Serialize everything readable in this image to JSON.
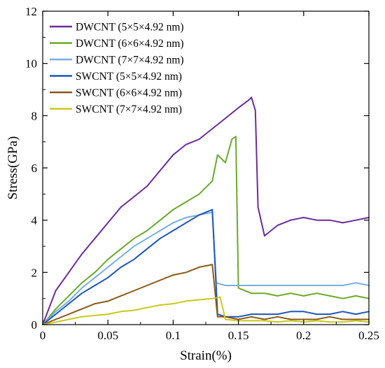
{
  "chart_data": {
    "type": "line",
    "xlabel": "Strain(%)",
    "ylabel": "Stress(GPa)",
    "xlim": [
      0,
      0.25
    ],
    "ylim": [
      0,
      12
    ],
    "xticks": [
      0,
      0.05,
      0.1,
      0.15,
      0.2,
      0.25
    ],
    "yticks": [
      0,
      2,
      4,
      6,
      8,
      10,
      12
    ],
    "xtick_labels": [
      "0",
      "0.05",
      "0.1",
      "0.15",
      "0.2",
      "0.25"
    ],
    "ytick_labels": [
      "0",
      "2",
      "4",
      "6",
      "8",
      "10",
      "12"
    ],
    "grid": false,
    "legend_position": "top-left",
    "series": [
      {
        "name": "DWCNT (5×5×4.92 nm)",
        "color": "#6a2c9c",
        "x": [
          0,
          0.01,
          0.02,
          0.03,
          0.04,
          0.05,
          0.06,
          0.07,
          0.08,
          0.09,
          0.1,
          0.11,
          0.12,
          0.13,
          0.14,
          0.15,
          0.158,
          0.16,
          0.163,
          0.165,
          0.17,
          0.18,
          0.19,
          0.2,
          0.21,
          0.22,
          0.23,
          0.24,
          0.25
        ],
        "y": [
          0,
          1.3,
          2.0,
          2.7,
          3.3,
          3.9,
          4.5,
          4.9,
          5.3,
          5.9,
          6.5,
          6.9,
          7.1,
          7.5,
          7.9,
          8.3,
          8.6,
          8.7,
          8.2,
          4.5,
          3.4,
          3.8,
          4.0,
          4.1,
          4.0,
          4.0,
          3.9,
          4.0,
          4.1
        ]
      },
      {
        "name": "DWCNT (6×6×4.92 nm)",
        "color": "#6aaa2a",
        "x": [
          0,
          0.01,
          0.02,
          0.03,
          0.04,
          0.05,
          0.06,
          0.07,
          0.08,
          0.09,
          0.1,
          0.11,
          0.12,
          0.13,
          0.134,
          0.14,
          0.145,
          0.148,
          0.15,
          0.16,
          0.17,
          0.18,
          0.19,
          0.2,
          0.21,
          0.22,
          0.23,
          0.24,
          0.25
        ],
        "y": [
          0,
          0.6,
          1.1,
          1.6,
          2.0,
          2.5,
          2.9,
          3.3,
          3.6,
          4.0,
          4.4,
          4.7,
          5.0,
          5.5,
          6.5,
          6.2,
          7.1,
          7.2,
          1.4,
          1.2,
          1.2,
          1.1,
          1.2,
          1.1,
          1.2,
          1.1,
          1.0,
          1.1,
          1.0
        ]
      },
      {
        "name": "DWCNT (7×7×4.92 nm)",
        "color": "#78aee0",
        "x": [
          0,
          0.01,
          0.02,
          0.03,
          0.04,
          0.05,
          0.06,
          0.07,
          0.08,
          0.09,
          0.1,
          0.11,
          0.12,
          0.13,
          0.133,
          0.14,
          0.15,
          0.16,
          0.17,
          0.18,
          0.19,
          0.2,
          0.21,
          0.22,
          0.23,
          0.24,
          0.25
        ],
        "y": [
          0,
          0.5,
          0.9,
          1.4,
          1.8,
          2.2,
          2.6,
          3.0,
          3.3,
          3.6,
          3.9,
          4.1,
          4.2,
          4.3,
          1.6,
          1.5,
          1.5,
          1.5,
          1.5,
          1.5,
          1.5,
          1.5,
          1.5,
          1.5,
          1.5,
          1.6,
          1.5
        ]
      },
      {
        "name": "SWCNT (5×5×4.92 nm)",
        "color": "#1f55b8",
        "x": [
          0,
          0.01,
          0.02,
          0.03,
          0.04,
          0.05,
          0.06,
          0.07,
          0.08,
          0.09,
          0.1,
          0.11,
          0.12,
          0.13,
          0.134,
          0.14,
          0.15,
          0.16,
          0.17,
          0.18,
          0.19,
          0.2,
          0.21,
          0.22,
          0.23,
          0.24,
          0.25
        ],
        "y": [
          0,
          0.4,
          0.8,
          1.2,
          1.5,
          1.8,
          2.2,
          2.5,
          2.9,
          3.3,
          3.6,
          3.9,
          4.2,
          4.4,
          0.4,
          0.3,
          0.3,
          0.4,
          0.4,
          0.4,
          0.5,
          0.5,
          0.4,
          0.4,
          0.5,
          0.4,
          0.5
        ]
      },
      {
        "name": "SWCNT (6×6×4.92 nm)",
        "color": "#8a5a14",
        "x": [
          0,
          0.01,
          0.02,
          0.03,
          0.04,
          0.05,
          0.06,
          0.07,
          0.08,
          0.09,
          0.1,
          0.11,
          0.12,
          0.13,
          0.134,
          0.14,
          0.15,
          0.16,
          0.17,
          0.18,
          0.19,
          0.2,
          0.21,
          0.22,
          0.23,
          0.24,
          0.25
        ],
        "y": [
          0,
          0.2,
          0.4,
          0.6,
          0.8,
          0.9,
          1.1,
          1.3,
          1.5,
          1.7,
          1.9,
          2.0,
          2.2,
          2.3,
          0.3,
          0.3,
          0.2,
          0.3,
          0.2,
          0.3,
          0.2,
          0.2,
          0.2,
          0.3,
          0.2,
          0.2,
          0.2
        ]
      },
      {
        "name": "SWCNT (7×7×4.92 nm)",
        "color": "#c8c81e",
        "x": [
          0,
          0.01,
          0.02,
          0.03,
          0.04,
          0.05,
          0.06,
          0.07,
          0.08,
          0.09,
          0.1,
          0.11,
          0.12,
          0.13,
          0.136,
          0.14,
          0.15,
          0.16,
          0.17,
          0.18,
          0.19,
          0.2,
          0.21,
          0.22,
          0.23,
          0.24,
          0.25
        ],
        "y": [
          0,
          0.1,
          0.2,
          0.3,
          0.35,
          0.4,
          0.5,
          0.55,
          0.65,
          0.75,
          0.8,
          0.9,
          0.95,
          1.0,
          1.05,
          0.2,
          0.15,
          0.15,
          0.15,
          0.1,
          0.15,
          0.1,
          0.15,
          0.1,
          0.1,
          0.15,
          0.1
        ]
      }
    ]
  }
}
